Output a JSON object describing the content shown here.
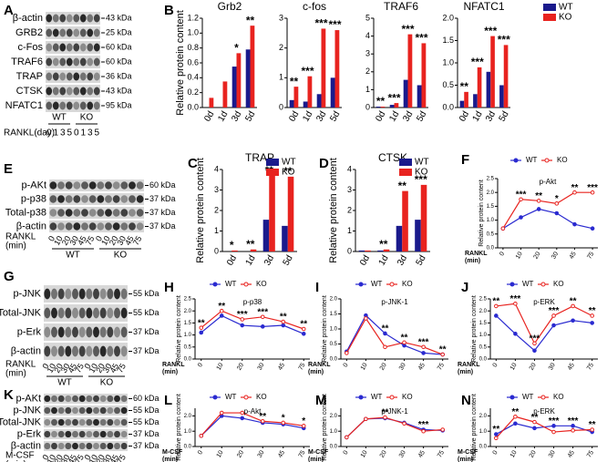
{
  "blots": [
    {
      "panel": "A",
      "rows": [
        {
          "label": "β-actin",
          "kda": "43 kDa"
        },
        {
          "label": "GRB2",
          "kda": "25 kDa"
        },
        {
          "label": "c-Fos",
          "kda": "60 kDa"
        },
        {
          "label": "TRAF6",
          "kda": "60 kDa"
        },
        {
          "label": "TRAP",
          "kda": "36 kDa"
        },
        {
          "label": "CTSK",
          "kda": "43 kDa"
        },
        {
          "label": "NFATC1",
          "kda": "95 kDa"
        }
      ],
      "lanes": [
        "0",
        "1",
        "3",
        "5",
        "0",
        "1",
        "3",
        "5"
      ],
      "groups": [
        "WT",
        "KO"
      ],
      "xlabel": [
        "RANKL(day)"
      ]
    },
    {
      "panel": "E",
      "rows": [
        {
          "label": "p-AKt",
          "kda": "60 kDa"
        },
        {
          "label": "p-p38",
          "kda": "37 kDa"
        },
        {
          "label": "Total-p38",
          "kda": "37 kDa"
        },
        {
          "label": "β-actin",
          "kda": "37 kDa"
        }
      ],
      "lanes": [
        "0",
        "10",
        "20",
        "30",
        "45",
        "75",
        "0",
        "10",
        "20",
        "30",
        "45",
        "75"
      ],
      "groups": [
        "WT",
        "KO"
      ],
      "xlabel": [
        "RANKL",
        "(min)"
      ]
    },
    {
      "panel": "G",
      "rows": [
        {
          "label": "p-JNK",
          "kda": "55 kDa"
        },
        {
          "label": "Total-JNK",
          "kda": "55 kDa"
        },
        {
          "label": "p-Erk",
          "kda": "37 kDa"
        },
        {
          "label": "β-actin",
          "kda": "37 kDa"
        }
      ],
      "lanes": [
        "0",
        "10",
        "20",
        "30",
        "45",
        "75",
        "0",
        "10",
        "20",
        "30",
        "45",
        "75"
      ],
      "groups": [
        "WT",
        "KO"
      ],
      "xlabel": [
        "RANKL",
        "(min)"
      ]
    },
    {
      "panel": "K",
      "rows": [
        {
          "label": "p-AKt",
          "kda": "60 kDa"
        },
        {
          "label": "p-JNK",
          "kda": "55 kDa"
        },
        {
          "label": "Total-JNK",
          "kda": "55 kDa"
        },
        {
          "label": "p-Erk",
          "kda": "37 kDa"
        },
        {
          "label": "β-actin",
          "kda": "37 kDa"
        }
      ],
      "lanes": [
        "0",
        "10",
        "20",
        "30",
        "45",
        "75",
        "0",
        "10",
        "20",
        "30",
        "45",
        "75"
      ],
      "groups": [
        "WT",
        "KO"
      ],
      "xlabel": [
        "M-CSF",
        "(min)"
      ]
    }
  ],
  "chart_data": [
    {
      "panel": "B",
      "type": "bar",
      "title": "Grb2",
      "ylabel": "Relative protein content",
      "categories": [
        "0d",
        "1d",
        "3d",
        "5d"
      ],
      "series": [
        {
          "name": "WT",
          "color": "#1a1a8c",
          "values": [
            0,
            0,
            0.55,
            0.78
          ]
        },
        {
          "name": "KO",
          "color": "#e8231f",
          "values": [
            0.13,
            0.35,
            0.73,
            1.1
          ]
        }
      ],
      "annotations": [
        null,
        null,
        "*",
        "**"
      ],
      "ylim": [
        0,
        1.2
      ],
      "yticks": [
        {
          "value": 0,
          "label": "0.0"
        },
        0.2,
        0.4,
        0.6,
        0.8,
        {
          "value": 1,
          "label": "1.0"
        },
        1.2
      ]
    },
    {
      "type": "bar",
      "title": "c-fos",
      "categories": [
        "0d",
        "1d",
        "3d",
        "5d"
      ],
      "series": [
        {
          "name": "WT",
          "color": "#1a1a8c",
          "values": [
            0.25,
            0.2,
            0.45,
            1.0
          ]
        },
        {
          "name": "KO",
          "color": "#e8231f",
          "values": [
            0.7,
            1.05,
            2.65,
            2.6
          ]
        }
      ],
      "annotations": [
        "**",
        "***",
        "***",
        "***"
      ],
      "ylim": [
        0,
        3
      ],
      "yticks": [
        0,
        1,
        2,
        3
      ]
    },
    {
      "type": "bar",
      "title": "TRAF6",
      "categories": [
        "0d",
        "1d",
        "3d",
        "5d"
      ],
      "series": [
        {
          "name": "WT",
          "color": "#1a1a8c",
          "values": [
            0.05,
            0.15,
            1.55,
            1.25
          ]
        },
        {
          "name": "KO",
          "color": "#e8231f",
          "values": [
            0.05,
            0.25,
            4.1,
            3.6
          ]
        }
      ],
      "annotations": [
        "**",
        "***",
        "***",
        "***"
      ],
      "ylim": [
        0,
        5
      ],
      "yticks": [
        0,
        1,
        2,
        3,
        4,
        5
      ]
    },
    {
      "type": "bar",
      "title": "NFATC1",
      "legend": true,
      "categories": [
        "0d",
        "1d",
        "3d",
        "5d"
      ],
      "series": [
        {
          "name": "WT",
          "color": "#1a1a8c",
          "values": [
            0.15,
            0.3,
            0.8,
            0.5
          ]
        },
        {
          "name": "KO",
          "color": "#e8231f",
          "values": [
            0.35,
            0.9,
            1.6,
            1.4
          ]
        }
      ],
      "annotations": [
        "**",
        "***",
        "***",
        "***"
      ],
      "ylim": [
        0,
        2
      ],
      "yticks": [
        {
          "value": 0,
          "label": "0.0"
        },
        0.5,
        {
          "value": 1,
          "label": "1.0"
        },
        1.5,
        {
          "value": 2,
          "label": "2.0"
        }
      ]
    },
    {
      "panel": "C",
      "type": "bar",
      "title": "TRAP",
      "ylabel": "Relative protein content",
      "legend": true,
      "categories": [
        "0d",
        "1d",
        "3d",
        "5d"
      ],
      "series": [
        {
          "name": "WT",
          "color": "#1a1a8c",
          "values": [
            0,
            0,
            1.55,
            1.25
          ]
        },
        {
          "name": "KO",
          "color": "#e8231f",
          "values": [
            0.05,
            0.1,
            3.7,
            3.65
          ]
        }
      ],
      "annotations": [
        "*",
        "**",
        "**",
        "**"
      ],
      "ylim": [
        0,
        4
      ],
      "yticks": [
        0,
        1,
        2,
        3,
        4
      ]
    },
    {
      "panel": "D",
      "type": "bar",
      "title": "CTSK",
      "ylabel": "Relative protein content",
      "legend": true,
      "categories": [
        "0d",
        "1d",
        "3d",
        "5d"
      ],
      "series": [
        {
          "name": "WT",
          "color": "#1a1a8c",
          "values": [
            0.05,
            0.05,
            1.25,
            1.55
          ]
        },
        {
          "name": "KO",
          "color": "#e8231f",
          "values": [
            0.05,
            0.1,
            2.95,
            3.25
          ]
        }
      ],
      "annotations": [
        null,
        "**",
        "**",
        "***"
      ],
      "ylim": [
        0,
        4
      ],
      "yticks": [
        0,
        1,
        2,
        3,
        4
      ]
    },
    {
      "panel": "F",
      "type": "line",
      "title": "p-Akt",
      "ylabel": "Relative protein content",
      "legend": true,
      "xlabel": [
        "RANKL",
        "(min)"
      ],
      "categories": [
        "0",
        "10",
        "20",
        "30",
        "45",
        "75"
      ],
      "series": [
        {
          "name": "WT",
          "color": "#2a2ad0",
          "values": [
            0.7,
            1.1,
            1.4,
            1.25,
            0.85,
            0.7
          ]
        },
        {
          "name": "KO",
          "color": "#e8231f",
          "values": [
            0.7,
            1.75,
            1.7,
            1.6,
            2.0,
            2.0
          ]
        }
      ],
      "annotations": [
        null,
        "***",
        "**",
        "*",
        "**",
        "***"
      ],
      "ylim": [
        0,
        2.5
      ],
      "yticks": [
        {
          "value": 0,
          "label": "0.0"
        },
        0.5,
        {
          "value": 1,
          "label": "1.0"
        },
        1.5,
        {
          "value": 2,
          "label": "2.0"
        },
        2.5
      ]
    },
    {
      "panel": "H",
      "type": "line",
      "title": "p-p38",
      "ylabel": "Relative protein content",
      "legend": true,
      "xlabel": [
        "RANKL",
        "(min)"
      ],
      "categories": [
        "0",
        "10",
        "20",
        "30",
        "45",
        "75"
      ],
      "series": [
        {
          "name": "WT",
          "color": "#2a2ad0",
          "values": [
            1.1,
            1.8,
            1.4,
            1.35,
            1.4,
            1.05
          ]
        },
        {
          "name": "KO",
          "color": "#e8231f",
          "values": [
            1.3,
            2.0,
            1.65,
            1.75,
            1.55,
            1.25
          ]
        }
      ],
      "annotations": [
        "**",
        "**",
        "***",
        "***",
        "**",
        "**"
      ],
      "ylim": [
        0,
        2.5
      ],
      "yticks": [
        {
          "value": 0,
          "label": "0.0"
        },
        0.5,
        {
          "value": 1,
          "label": "1.0"
        },
        1.5,
        {
          "value": 2,
          "label": "2.0"
        },
        2.5
      ]
    },
    {
      "panel": "I",
      "type": "line",
      "title": "p-JNK-1",
      "ylabel": "Relative protein content",
      "legend": true,
      "xlabel": [
        "RANKL",
        "(min)"
      ],
      "categories": [
        "0",
        "10",
        "20",
        "30",
        "45",
        "75"
      ],
      "series": [
        {
          "name": "WT",
          "color": "#2a2ad0",
          "values": [
            0.25,
            1.45,
            0.85,
            0.45,
            0.2,
            0.15
          ]
        },
        {
          "name": "KO",
          "color": "#e8231f",
          "values": [
            0.2,
            1.35,
            0.4,
            0.55,
            0.4,
            0.15
          ]
        }
      ],
      "annotations": [
        null,
        null,
        "**",
        "**",
        "***",
        "**"
      ],
      "ylim": [
        0,
        2
      ],
      "yticks": [
        {
          "value": 0,
          "label": "0.0"
        },
        0.5,
        {
          "value": 1,
          "label": "1.0"
        },
        1.5,
        {
          "value": 2,
          "label": "2.0"
        }
      ]
    },
    {
      "panel": "J",
      "type": "line",
      "title": "p-ERK",
      "ylabel": "Relative protein content",
      "legend": true,
      "xlabel": [
        "RANKL",
        "(min)"
      ],
      "categories": [
        "0",
        "10",
        "20",
        "30",
        "45",
        "75"
      ],
      "series": [
        {
          "name": "WT",
          "color": "#2a2ad0",
          "values": [
            1.8,
            1.05,
            0.35,
            1.4,
            1.6,
            1.5
          ]
        },
        {
          "name": "KO",
          "color": "#e8231f",
          "values": [
            2.2,
            2.3,
            0.65,
            1.8,
            2.2,
            1.8
          ]
        }
      ],
      "annotations": [
        "**",
        "***",
        "***",
        "***",
        "**",
        "**"
      ],
      "ylim": [
        0,
        2.5
      ],
      "yticks": [
        {
          "value": 0,
          "label": "0.0"
        },
        0.5,
        {
          "value": 1,
          "label": "1.0"
        },
        1.5,
        {
          "value": 2,
          "label": "2.0"
        },
        2.5
      ]
    },
    {
      "panel": "L",
      "type": "line",
      "title": "p-Akt",
      "ylabel": "Relative protein content",
      "legend": true,
      "xlabel": [
        "M-CSF",
        "(min)"
      ],
      "categories": [
        "0",
        "10",
        "20",
        "30",
        "45",
        "75"
      ],
      "series": [
        {
          "name": "WT",
          "color": "#2a2ad0",
          "values": [
            0.7,
            2.0,
            1.85,
            1.55,
            1.45,
            1.2
          ]
        },
        {
          "name": "KO",
          "color": "#e8231f",
          "values": [
            0.7,
            2.2,
            2.2,
            1.65,
            1.55,
            1.35
          ]
        }
      ],
      "annotations": [
        null,
        null,
        null,
        "**",
        "*",
        "*"
      ],
      "ylim": [
        0,
        2.5
      ],
      "yticks": [
        {
          "value": 0,
          "label": "0.0"
        },
        {
          "value": 1,
          "label": "1.0"
        },
        {
          "value": 2,
          "label": "2.0"
        }
      ]
    },
    {
      "panel": "M",
      "type": "line",
      "title": "p-JNK-1",
      "ylabel": "Relative protein content",
      "legend": true,
      "xlabel": [
        "M-CSF",
        "(min)"
      ],
      "categories": [
        "0",
        "10",
        "20",
        "30",
        "45",
        "75"
      ],
      "series": [
        {
          "name": "WT",
          "color": "#2a2ad0",
          "values": [
            0.6,
            1.8,
            1.85,
            1.55,
            1.1,
            1.05
          ]
        },
        {
          "name": "KO",
          "color": "#e8231f",
          "values": [
            0.6,
            1.8,
            1.9,
            1.5,
            1.0,
            1.1
          ]
        }
      ],
      "annotations": [
        null,
        null,
        "**",
        null,
        "***",
        null
      ],
      "ylim": [
        0,
        2.5
      ],
      "yticks": [
        {
          "value": 0,
          "label": "0.0"
        },
        {
          "value": 1,
          "label": "1.0"
        },
        {
          "value": 2,
          "label": "2.0"
        }
      ]
    },
    {
      "panel": "N",
      "type": "line",
      "title": "p-ERK",
      "ylabel": "Relative protein content",
      "legend": true,
      "xlabel": [
        "M-CSF",
        "(min)"
      ],
      "categories": [
        "0",
        "10",
        "20",
        "30",
        "45",
        "75"
      ],
      "series": [
        {
          "name": "WT",
          "color": "#2a2ad0",
          "values": [
            0.8,
            1.5,
            1.2,
            1.35,
            1.35,
            0.95
          ]
        },
        {
          "name": "KO",
          "color": "#e8231f",
          "values": [
            0.55,
            1.95,
            1.6,
            0.95,
            1.05,
            1.1
          ]
        }
      ],
      "annotations": [
        "**",
        "**",
        "**",
        "***",
        "***",
        "**"
      ],
      "ylim": [
        0,
        2.5
      ],
      "yticks": [
        {
          "value": 0,
          "label": "0.0"
        },
        {
          "value": 1,
          "label": "1.0"
        },
        {
          "value": 2,
          "label": "2.0"
        }
      ]
    }
  ]
}
